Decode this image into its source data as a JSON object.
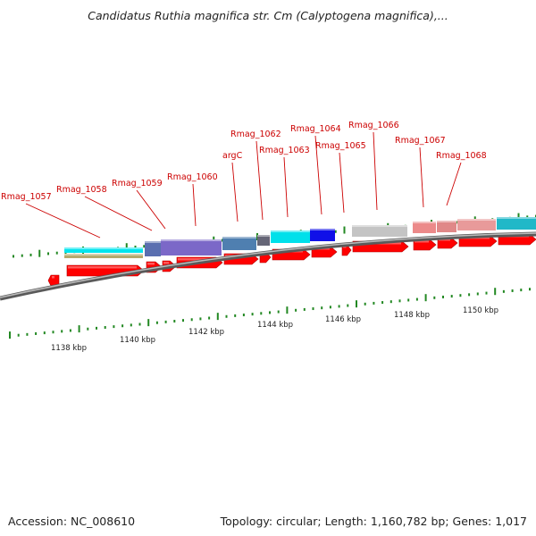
{
  "title": "Candidatus Ruthia magnifica str. Cm (Calyptogena magnifica),...",
  "footer": {
    "accession": "Accession: NC_008610",
    "topology": "Topology: circular; Length: 1,160,782 bp; Genes: 1,017"
  },
  "colors": {
    "label": "#cc0000",
    "gene": "#ff0000",
    "tick": "#228822",
    "backbone": "#7f7f7f"
  },
  "gene_labels": [
    {
      "name": "Rmag_1057"
    },
    {
      "name": "Rmag_1058"
    },
    {
      "name": "Rmag_1059"
    },
    {
      "name": "Rmag_1060"
    },
    {
      "name": "argC"
    },
    {
      "name": "Rmag_1062"
    },
    {
      "name": "Rmag_1063"
    },
    {
      "name": "Rmag_1064"
    },
    {
      "name": "Rmag_1065"
    },
    {
      "name": "Rmag_1066"
    },
    {
      "name": "Rmag_1067"
    },
    {
      "name": "Rmag_1068"
    }
  ],
  "scale_labels": [
    "1138 kbp",
    "1140 kbp",
    "1142 kbp",
    "1144 kbp",
    "1146 kbp",
    "1148 kbp",
    "1150 kbp"
  ]
}
